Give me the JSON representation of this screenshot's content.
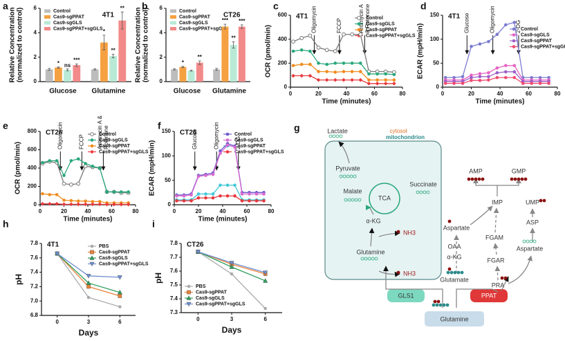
{
  "chart_data": [
    {
      "type": "bar",
      "panel": "a",
      "title": "4T1",
      "ylabel": [
        "Relative Concentration",
        "(normalized to control)"
      ],
      "categories": [
        "Glucose",
        "Glutamine"
      ],
      "ylim": [
        0,
        6
      ],
      "yticks": [
        0,
        2,
        4,
        6
      ],
      "legend": "upper left",
      "series": [
        {
          "name": "Control",
          "color": "#bdbdbd",
          "values": [
            1,
            1
          ],
          "errors": [
            0.08,
            0.05
          ],
          "stars": [
            null,
            null
          ]
        },
        {
          "name": "Cas9-sgPPAT",
          "color": "#f5a142",
          "values": [
            1.15,
            3.2
          ],
          "errors": [
            0.05,
            0.6
          ],
          "stars": [
            "*",
            "*"
          ]
        },
        {
          "name": "Cas9-sgGLS",
          "color": "#b9ead6",
          "values": [
            0.95,
            2.1
          ],
          "errors": [
            0.08,
            0.15
          ],
          "stars": [
            "ns",
            "**"
          ]
        },
        {
          "name": "Cas9-sgPPAT+sgGLS",
          "color": "#f28a8a",
          "values": [
            1.35,
            5.0
          ],
          "errors": [
            0.1,
            0.7
          ],
          "stars": [
            "***",
            "**"
          ]
        }
      ]
    },
    {
      "type": "bar",
      "panel": "b",
      "title": "CT26",
      "ylabel": [
        "Relative Concentration",
        "(normalized to control)"
      ],
      "categories": [
        "Glucose",
        "Glutamine"
      ],
      "ylim": [
        0,
        6
      ],
      "yticks": [
        0,
        2,
        4,
        6
      ],
      "legend": "upper left",
      "series": [
        {
          "name": "Control",
          "color": "#bdbdbd",
          "values": [
            1,
            1
          ],
          "errors": [
            0.05,
            0.08
          ],
          "stars": [
            null,
            null
          ]
        },
        {
          "name": "Cas9-sgPPAT",
          "color": "#f5a142",
          "values": [
            1.2,
            4.5
          ],
          "errors": [
            0.05,
            0.2
          ],
          "stars": [
            "*",
            "***"
          ]
        },
        {
          "name": "Cas9-sgGLS",
          "color": "#b9ead6",
          "values": [
            0.9,
            3.0
          ],
          "errors": [
            0.05,
            0.25
          ],
          "stars": [
            null,
            "**"
          ]
        },
        {
          "name": "Cas9-sgPPAT+sgGLS",
          "color": "#f28a8a",
          "values": [
            1.55,
            4.5
          ],
          "errors": [
            0.15,
            0.15
          ],
          "stars": [
            "**",
            "***"
          ]
        }
      ]
    },
    {
      "type": "line",
      "panel": "c",
      "title": "4T1",
      "xlabel": "Time (minutes)",
      "ylabel": "OCR (pmol/min)",
      "xlim": [
        0,
        80
      ],
      "xticks": [
        0,
        20,
        40,
        60,
        80
      ],
      "ylim": [
        0,
        600
      ],
      "yticks": [
        0,
        200,
        400,
        600
      ],
      "legend": "upper right",
      "x": [
        2,
        8,
        14,
        20,
        26,
        32,
        38,
        44,
        50,
        56,
        62,
        68,
        74
      ],
      "annotations": [
        {
          "text": "Oligomycin",
          "x": 17
        },
        {
          "text": "FCCP",
          "x": 35
        },
        {
          "text": [
            "Antimycin A",
            "& Rotenone"
          ],
          "x": 53
        }
      ],
      "series": [
        {
          "name": "Control",
          "color": "#777777",
          "marker": "open-circle",
          "values": [
            380,
            410,
            430,
            330,
            310,
            300,
            440,
            440,
            440,
            130,
            130,
            130,
            125
          ]
        },
        {
          "name": "Cas9-sgGLS",
          "color": "#2aa87a",
          "marker": "circle",
          "values": [
            300,
            310,
            300,
            200,
            190,
            200,
            200,
            200,
            200,
            110,
            110,
            110,
            105
          ]
        },
        {
          "name": "Cas9-sgPPAT",
          "color": "#f08c1e",
          "marker": "circle",
          "values": [
            180,
            190,
            190,
            130,
            130,
            125,
            130,
            130,
            130,
            60,
            60,
            60,
            60
          ]
        },
        {
          "name": "Cas9-sgPPAT+sgGLS",
          "color": "#e8383d",
          "marker": "diamond",
          "values": [
            95,
            95,
            95,
            60,
            60,
            60,
            60,
            60,
            60,
            30,
            30,
            30,
            30
          ]
        }
      ]
    },
    {
      "type": "line",
      "panel": "d",
      "title": "4T1",
      "xlabel": "Time (minutes)",
      "ylabel": "ECAR (mpH/min)",
      "xlim": [
        0,
        80
      ],
      "xticks": [
        0,
        20,
        40,
        60,
        80
      ],
      "ylim": [
        0,
        150
      ],
      "yticks": [
        0,
        50,
        100,
        150
      ],
      "legend": "center right",
      "x": [
        2,
        8,
        14,
        20,
        26,
        32,
        38,
        44,
        50,
        56,
        62,
        68,
        74
      ],
      "annotations": [
        {
          "text": "Glucose",
          "x": 17
        },
        {
          "text": "Oligomycin",
          "x": 35
        },
        {
          "text": "2-DG",
          "x": 53
        }
      ],
      "series": [
        {
          "name": "Control",
          "color": "#7b7bd1",
          "marker": "circle",
          "values": [
            20,
            20,
            22,
            85,
            90,
            95,
            110,
            130,
            135,
            20,
            20,
            20,
            20
          ]
        },
        {
          "name": "Cas9-sgGLS",
          "color": "#e763c3",
          "marker": "circle",
          "values": [
            15,
            15,
            15,
            25,
            28,
            30,
            40,
            45,
            45,
            15,
            15,
            15,
            15
          ]
        },
        {
          "name": "Cas9-sgPPAT",
          "color": "#9a5fc8",
          "marker": "circle",
          "values": [
            12,
            12,
            12,
            20,
            22,
            22,
            30,
            32,
            32,
            12,
            12,
            12,
            12
          ]
        },
        {
          "name": "Cas9-sgPPAT+sgGLS",
          "color": "#f04a70",
          "marker": "circle",
          "values": [
            8,
            8,
            8,
            14,
            14,
            15,
            20,
            20,
            20,
            8,
            8,
            8,
            8
          ]
        }
      ]
    },
    {
      "type": "line",
      "panel": "e",
      "title": "CT26",
      "xlabel": "Time (minutes)",
      "ylabel": "OCR (pmol/min)",
      "xlim": [
        0,
        80
      ],
      "xticks": [
        0,
        20,
        40,
        60,
        80
      ],
      "ylim": [
        0,
        800
      ],
      "yticks": [
        0,
        200,
        400,
        600,
        800
      ],
      "legend": "upper right",
      "x": [
        2,
        8,
        14,
        20,
        26,
        32,
        38,
        44,
        50,
        56,
        62,
        68,
        74
      ],
      "annotations": [
        {
          "text": "Oligomycin",
          "x": 17
        },
        {
          "text": "FCCP",
          "x": 35
        },
        {
          "text": [
            "Antimycin A &",
            "Rotenone"
          ],
          "x": 53
        }
      ],
      "series": [
        {
          "name": "Control",
          "color": "#777777",
          "marker": "open-circle",
          "values": [
            450,
            470,
            460,
            230,
            220,
            230,
            420,
            410,
            400,
            140,
            140,
            130,
            130
          ]
        },
        {
          "name": "Cas9-sgGLS",
          "color": "#2aa87a",
          "marker": "circle",
          "values": [
            460,
            480,
            480,
            320,
            480,
            500,
            450,
            420,
            400,
            140,
            140,
            140,
            140
          ]
        },
        {
          "name": "Cas9-sgPPAT",
          "color": "#f08c1e",
          "marker": "circle",
          "values": [
            120,
            110,
            110,
            50,
            45,
            40,
            40,
            35,
            35,
            20,
            20,
            20,
            20
          ]
        },
        {
          "name": "Cas9-sgPPAT+sgGLS",
          "color": "#e8383d",
          "marker": "diamond",
          "values": [
            10,
            10,
            10,
            5,
            5,
            5,
            5,
            5,
            5,
            3,
            3,
            3,
            3
          ]
        }
      ]
    },
    {
      "type": "line",
      "panel": "f",
      "title": "CT26",
      "xlabel": "Time (minutes)",
      "ylabel": "ECAR (mpH/min)",
      "xlim": [
        0,
        80
      ],
      "xticks": [
        0,
        20,
        40,
        60,
        80
      ],
      "ylim": [
        0,
        150
      ],
      "yticks": [
        0,
        50,
        100,
        150
      ],
      "legend": "upper right",
      "x": [
        2,
        8,
        14,
        20,
        26,
        32,
        38,
        44,
        50,
        56,
        62,
        68,
        74
      ],
      "annotations": [
        {
          "text": "Glucose",
          "x": 17
        },
        {
          "text": "Oligomycin",
          "x": 35
        },
        {
          "text": "2-DG",
          "x": 53
        }
      ],
      "series": [
        {
          "name": "Control",
          "color": "#6a5acd",
          "marker": "circle",
          "values": [
            20,
            20,
            22,
            60,
            62,
            65,
            110,
            125,
            120,
            25,
            25,
            25,
            25
          ]
        },
        {
          "name": "Cas9-sgGLS",
          "color": "#d86bd0",
          "marker": "circle",
          "values": [
            18,
            18,
            20,
            58,
            60,
            62,
            105,
            122,
            118,
            22,
            22,
            22,
            22
          ]
        },
        {
          "name": "Cas9-sgPPAT",
          "color": "#41c8d8",
          "marker": "circle",
          "values": [
            10,
            10,
            10,
            22,
            22,
            22,
            40,
            40,
            40,
            10,
            10,
            10,
            10
          ]
        },
        {
          "name": "Cas9-sgPPAT+sgGLS",
          "color": "#e8383d",
          "marker": "circle",
          "values": [
            8,
            8,
            8,
            14,
            14,
            14,
            18,
            18,
            18,
            8,
            8,
            8,
            8
          ]
        }
      ]
    },
    {
      "type": "line",
      "panel": "h",
      "title": "4T1",
      "xlabel": "Days",
      "ylabel": "pH",
      "xlim": [
        -1.5,
        7.5
      ],
      "xticks": [
        0,
        3,
        6
      ],
      "ylim": [
        6.8,
        7.8
      ],
      "yticks": [
        6.8,
        {
          "value": 7,
          "label": "7.0"
        },
        7.2,
        7.4,
        7.6,
        7.8
      ],
      "legend": "upper right",
      "x": [
        0,
        3,
        6
      ],
      "series": [
        {
          "name": "PBS",
          "color": "#aaaaaa",
          "marker": "circle",
          "values": [
            7.66,
            7.05,
            6.92
          ]
        },
        {
          "name": "Cas9-sgPPAT",
          "color": "#e8823a",
          "marker": "square",
          "values": [
            7.66,
            7.2,
            7.07
          ]
        },
        {
          "name": "Cas9-sgGLS",
          "color": "#2e9e5e",
          "marker": "triangle",
          "values": [
            7.66,
            7.25,
            7.12
          ]
        },
        {
          "name": "Cas9-sgPPAT+sgGLS",
          "color": "#6f8fd0",
          "marker": "triangle-down",
          "values": [
            7.66,
            7.35,
            7.33
          ]
        }
      ]
    },
    {
      "type": "line",
      "panel": "i",
      "title": "CT26",
      "xlabel": "Days",
      "ylabel": "pH",
      "xlim": [
        -1.5,
        7.5
      ],
      "xticks": [
        0,
        3,
        6
      ],
      "ylim": [
        7.3,
        7.8
      ],
      "yticks": [
        7.3,
        7.4,
        7.5,
        7.6,
        7.7,
        7.8
      ],
      "legend": "lower left",
      "x": [
        0,
        3,
        6
      ],
      "series": [
        {
          "name": "PBS",
          "color": "#aaaaaa",
          "marker": "circle",
          "values": [
            7.74,
            7.58,
            7.33
          ]
        },
        {
          "name": "Cas9-sgPPAT",
          "color": "#e8823a",
          "marker": "square",
          "values": [
            7.74,
            7.65,
            7.58
          ]
        },
        {
          "name": "Cas9-sgGLS",
          "color": "#2e9e5e",
          "marker": "triangle",
          "values": [
            7.74,
            7.63,
            7.53
          ]
        },
        {
          "name": "Cas9-sgPPAT+sgGLS",
          "color": "#6f8fd0",
          "marker": "triangle-down",
          "values": [
            7.74,
            7.66,
            7.59
          ]
        }
      ]
    }
  ],
  "diagram": {
    "panel": "g",
    "labels": [
      "Lactate",
      "cytosol",
      "mitochondrion",
      "Pyruvate",
      "Malate",
      "TCA",
      "Succinate",
      "α-KG",
      "NH3",
      "Glutamine",
      "NH3",
      "GLS1",
      "PPAT",
      "Glutamine",
      "AMP",
      "GMP",
      "IMP",
      "UMP",
      "Aspartate",
      "FGAM",
      "OAA",
      "α-KG",
      "ASP",
      "FGAR",
      "Glutamate",
      "Aspartate",
      "PRA"
    ]
  }
}
